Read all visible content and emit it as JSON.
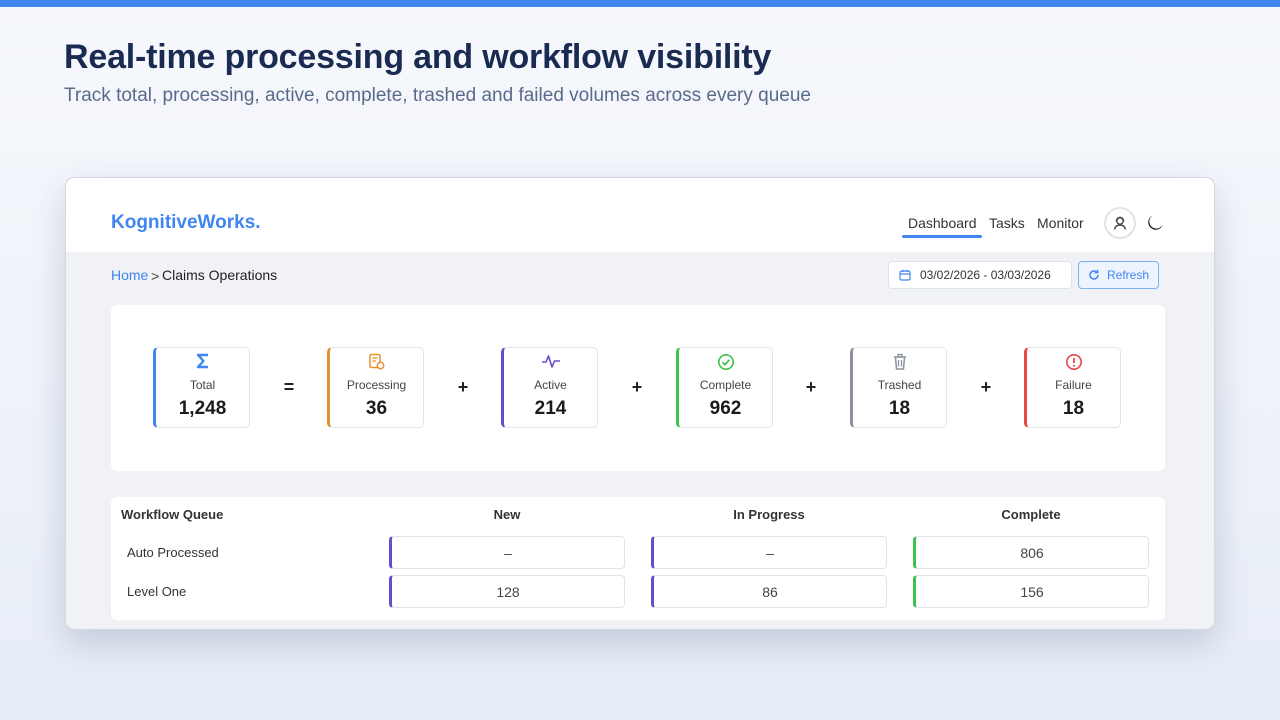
{
  "hero": {
    "title": "Real-time processing and workflow visibility",
    "subtitle": "Track total, processing, active, complete, trashed and failed volumes across every queue"
  },
  "app": {
    "logo": "KognitiveWorks.",
    "nav": {
      "dashboard": "Dashboard",
      "tasks": "Tasks",
      "monitor": "Monitor",
      "active": "Dashboard"
    },
    "avatar_icon": "user-avatar-icon",
    "theme_icon": "moon-icon"
  },
  "breadcrumb": {
    "home": "Home",
    "separator": ">",
    "current": "Claims Operations"
  },
  "toolbar": {
    "date_range": "03/02/2026 - 03/03/2026",
    "refresh_label": "Refresh"
  },
  "kpis": [
    {
      "label": "Total",
      "value": "1,248",
      "icon": "sigma-icon",
      "color": "#3f86f0"
    },
    {
      "label": "Processing",
      "value": "36",
      "icon": "document-gear-icon",
      "color": "#e6912e"
    },
    {
      "label": "Active",
      "value": "214",
      "icon": "pulse-icon",
      "color": "#6a4bc9"
    },
    {
      "label": "Complete",
      "value": "962",
      "icon": "check-circle-icon",
      "color": "#3fc14d"
    },
    {
      "label": "Trashed",
      "value": "18",
      "icon": "trash-icon",
      "color": "#8a929e"
    },
    {
      "label": "Failure",
      "value": "18",
      "icon": "alert-circle-icon",
      "color": "#e84545"
    }
  ],
  "operators": [
    "=",
    "+",
    "+",
    "+",
    "+"
  ],
  "workflow": {
    "headers": {
      "queue": "Workflow Queue",
      "new": "New",
      "in_progress": "In Progress",
      "complete": "Complete"
    },
    "rows": [
      {
        "name": "Auto Processed",
        "new": "–",
        "in_progress": "–",
        "complete": "806"
      },
      {
        "name": "Level One",
        "new": "128",
        "in_progress": "86",
        "complete": "156"
      }
    ],
    "colors": {
      "new": "#6a4bc9",
      "in_progress": "#6a4bc9",
      "complete": "#3fc14d"
    }
  }
}
